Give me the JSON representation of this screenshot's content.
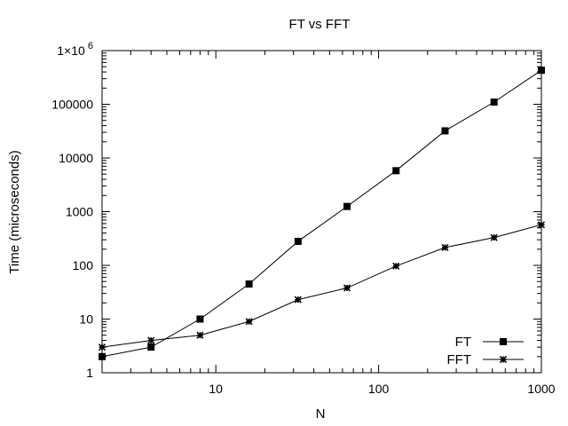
{
  "chart_data": {
    "type": "line",
    "title": "FT vs FFT",
    "xlabel": "N",
    "ylabel": "Time (microseconds)",
    "xscale": "log",
    "yscale": "log",
    "xlim": [
      2,
      1000
    ],
    "ylim": [
      1,
      1000000
    ],
    "xticks": [
      {
        "value": 10,
        "label": "10"
      },
      {
        "value": 100,
        "label": "100"
      },
      {
        "value": 1000,
        "label": "1000"
      }
    ],
    "yticks": [
      {
        "value": 1,
        "label": "1"
      },
      {
        "value": 10,
        "label": "10"
      },
      {
        "value": 100,
        "label": "100"
      },
      {
        "value": 1000,
        "label": "1000"
      },
      {
        "value": 10000,
        "label": "10000"
      },
      {
        "value": 100000,
        "label": "100000"
      },
      {
        "value": 1000000,
        "label": "1×10",
        "superscript": "6"
      }
    ],
    "grid": false,
    "legend_position": "bottom-right",
    "series": [
      {
        "name": "FT",
        "marker": "square",
        "color": "#000000",
        "x": [
          2,
          4,
          8,
          16,
          32,
          64,
          128,
          256,
          512,
          1024
        ],
        "y": [
          2,
          3,
          10,
          45,
          280,
          1250,
          5800,
          32000,
          110000,
          430000
        ]
      },
      {
        "name": "FFT",
        "marker": "star",
        "color": "#000000",
        "x": [
          2,
          4,
          8,
          16,
          32,
          64,
          128,
          256,
          512,
          1024
        ],
        "y": [
          3,
          4,
          5,
          9,
          23,
          38,
          97,
          215,
          330,
          570
        ]
      }
    ]
  }
}
